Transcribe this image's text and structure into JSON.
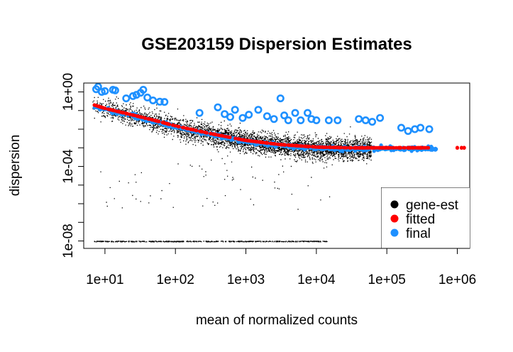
{
  "chart_data": {
    "type": "scatter",
    "title": "GSE203159 Dispersion Estimates",
    "xlabel": "mean of normalized counts",
    "ylabel": "dispersion",
    "x_scale": "log10",
    "y_scale": "log10",
    "xlim": [
      5,
      1500000
    ],
    "ylim": [
      4e-09,
      3.0
    ],
    "x_ticks": [
      {
        "value": 10,
        "label": "1e+01"
      },
      {
        "value": 100,
        "label": "1e+02"
      },
      {
        "value": 1000,
        "label": "1e+03"
      },
      {
        "value": 10000,
        "label": "1e+04"
      },
      {
        "value": 100000,
        "label": "1e+05"
      },
      {
        "value": 1000000,
        "label": "1e+06"
      }
    ],
    "y_ticks": [
      {
        "value": 1,
        "label": "1e+00"
      },
      {
        "value": 0.1,
        "label": ""
      },
      {
        "value": 0.01,
        "label": ""
      },
      {
        "value": 0.001,
        "label": ""
      },
      {
        "value": 0.0001,
        "label": "1e-04"
      },
      {
        "value": 1e-05,
        "label": ""
      },
      {
        "value": 1e-06,
        "label": ""
      },
      {
        "value": 1e-07,
        "label": ""
      },
      {
        "value": 1e-08,
        "label": "1e-08"
      }
    ],
    "grid": false,
    "legend_position": "bottom-right",
    "legend": [
      {
        "label": "gene-est",
        "color": "#000000"
      },
      {
        "label": "fitted",
        "color": "#ff0000"
      },
      {
        "label": "final",
        "color": "#1e90ff"
      }
    ],
    "series": [
      {
        "name": "gene-est",
        "color": "#000000",
        "description_points": "dense cloud of gene-wise estimates",
        "floor_value": 1e-08,
        "floor_x_range": [
          7,
          15000
        ]
      },
      {
        "name": "fitted",
        "color": "#ff0000",
        "points": [
          {
            "x": 7,
            "y": 0.2
          },
          {
            "x": 10,
            "y": 0.13
          },
          {
            "x": 20,
            "y": 0.07
          },
          {
            "x": 50,
            "y": 0.03
          },
          {
            "x": 100,
            "y": 0.015
          },
          {
            "x": 300,
            "y": 0.006
          },
          {
            "x": 1000,
            "y": 0.0025
          },
          {
            "x": 3000,
            "y": 0.0015
          },
          {
            "x": 10000,
            "y": 0.0011
          },
          {
            "x": 30000,
            "y": 0.001
          },
          {
            "x": 100000,
            "y": 0.001
          },
          {
            "x": 500000,
            "y": 0.001
          },
          {
            "x": 1100000,
            "y": 0.001
          }
        ]
      },
      {
        "name": "final",
        "color": "#1e90ff",
        "outliers": [
          {
            "x": 7.5,
            "y": 1.4
          },
          {
            "x": 8,
            "y": 1.9
          },
          {
            "x": 9,
            "y": 1.0
          },
          {
            "x": 10,
            "y": 1.1
          },
          {
            "x": 13,
            "y": 1.3
          },
          {
            "x": 14,
            "y": 1.2
          },
          {
            "x": 20,
            "y": 0.45
          },
          {
            "x": 25,
            "y": 0.6
          },
          {
            "x": 28,
            "y": 0.7
          },
          {
            "x": 32,
            "y": 0.9
          },
          {
            "x": 35,
            "y": 1.3
          },
          {
            "x": 40,
            "y": 0.5
          },
          {
            "x": 48,
            "y": 0.35
          },
          {
            "x": 60,
            "y": 0.3
          },
          {
            "x": 70,
            "y": 0.29
          },
          {
            "x": 220,
            "y": 0.075
          },
          {
            "x": 400,
            "y": 0.15
          },
          {
            "x": 500,
            "y": 0.065
          },
          {
            "x": 600,
            "y": 0.045
          },
          {
            "x": 700,
            "y": 0.11
          },
          {
            "x": 900,
            "y": 0.04
          },
          {
            "x": 1100,
            "y": 0.06
          },
          {
            "x": 1500,
            "y": 0.11
          },
          {
            "x": 2000,
            "y": 0.05
          },
          {
            "x": 2500,
            "y": 0.035
          },
          {
            "x": 3100,
            "y": 0.45
          },
          {
            "x": 3500,
            "y": 0.055
          },
          {
            "x": 4000,
            "y": 0.03
          },
          {
            "x": 5000,
            "y": 0.075
          },
          {
            "x": 6000,
            "y": 0.03
          },
          {
            "x": 7500,
            "y": 0.075
          },
          {
            "x": 8500,
            "y": 0.035
          },
          {
            "x": 10000,
            "y": 0.03
          },
          {
            "x": 15000,
            "y": 0.03
          },
          {
            "x": 20000,
            "y": 0.03
          },
          {
            "x": 40000,
            "y": 0.035
          },
          {
            "x": 50000,
            "y": 0.03
          },
          {
            "x": 62000,
            "y": 0.025
          },
          {
            "x": 80000,
            "y": 0.04
          },
          {
            "x": 160000,
            "y": 0.012
          },
          {
            "x": 200000,
            "y": 0.008
          },
          {
            "x": 250000,
            "y": 0.01
          },
          {
            "x": 300000,
            "y": 0.012
          },
          {
            "x": 400000,
            "y": 0.01
          }
        ]
      }
    ]
  }
}
